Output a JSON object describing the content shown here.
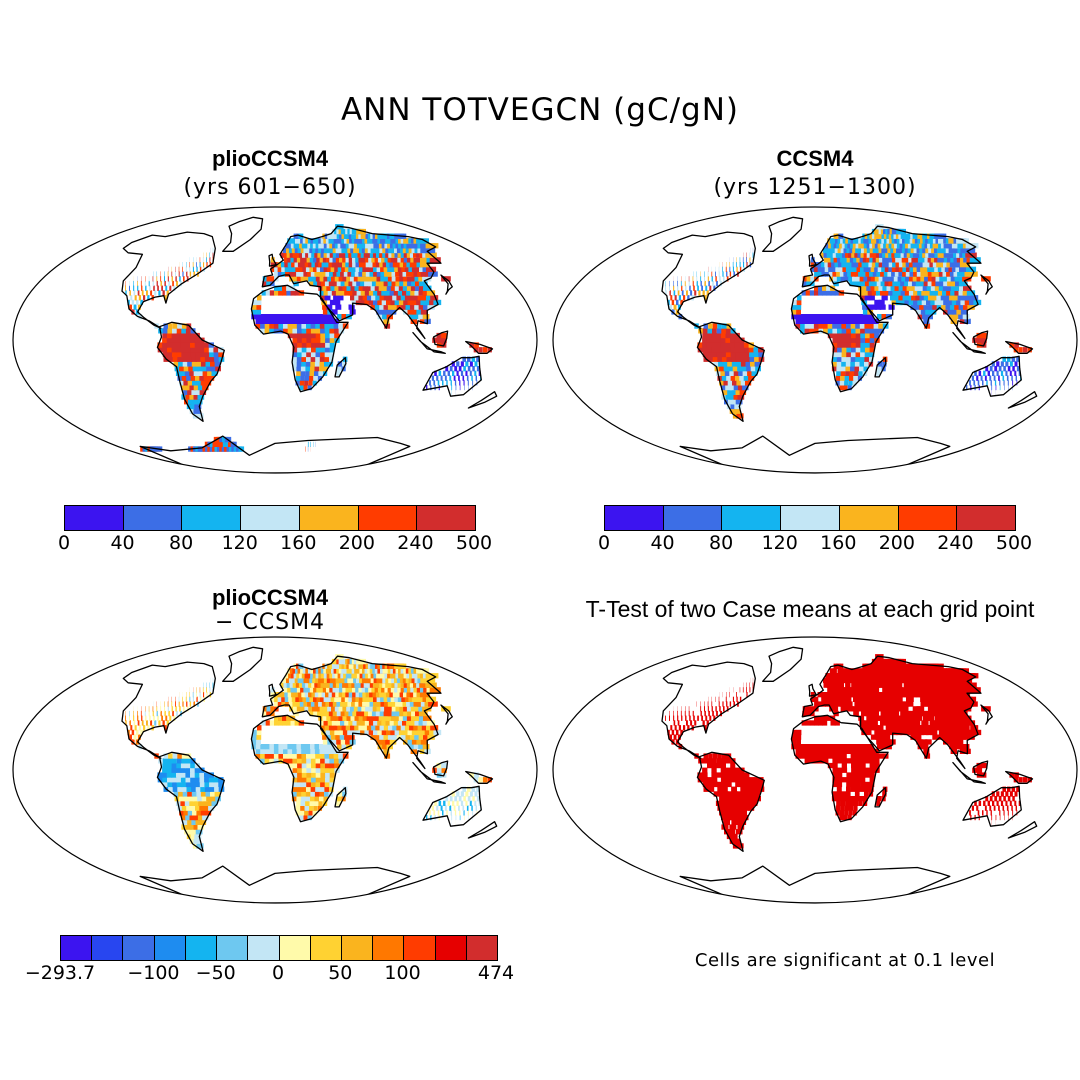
{
  "title": "ANN TOTVEGCN (gC/gN)",
  "panels": [
    {
      "title": "plioCCSM4",
      "subtitle": "(yrs 601−650)"
    },
    {
      "title": "CCSM4",
      "subtitle": "(yrs 1251−1300)"
    },
    {
      "title": "plioCCSM4",
      "subtitle": "− CCSM4"
    },
    {
      "title": "T-Test of two Case means at each grid point",
      "subtitle": ""
    }
  ],
  "colorbar_abs": {
    "colors": [
      "#3c14f0",
      "#3c6ee6",
      "#14b4f0",
      "#c3e6f5",
      "#fab41e",
      "#ff3c00",
      "#d22d2d"
    ],
    "ticks": [
      "0",
      "40",
      "80",
      "120",
      "160",
      "200",
      "240",
      "500"
    ]
  },
  "colorbar_diff": {
    "colors": [
      "#3c14f0",
      "#2846f0",
      "#3c6ee6",
      "#1e8cf0",
      "#14b4f0",
      "#6ec8f0",
      "#c3e6f5",
      "#fffaaa",
      "#ffd232",
      "#fab41e",
      "#ff7800",
      "#ff3c00",
      "#e60000",
      "#d22d2d"
    ],
    "ticks": [
      "−293.7",
      "−100",
      "−50",
      "0",
      "50",
      "100",
      "474"
    ]
  },
  "significance": {
    "color": "#e60000",
    "note": "Cells are significant at 0.1 level"
  }
}
